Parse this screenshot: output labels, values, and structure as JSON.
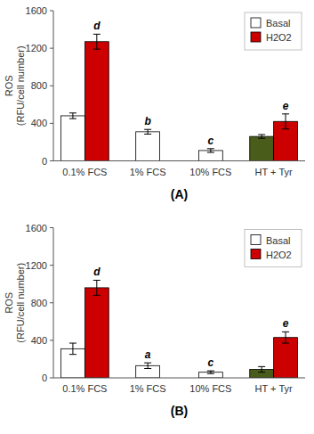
{
  "chart_data": [
    {
      "type": "bar",
      "title": "(A)",
      "categories": [
        "0.1% FCS",
        "1% FCS",
        "10% FCS",
        "HT + Tyr"
      ],
      "series": [
        {
          "name": "Basal",
          "color": "#ffffff",
          "colors": [
            "#ffffff",
            "#ffffff",
            "#ffffff",
            "#4a5c1a"
          ],
          "values": [
            480,
            310,
            110,
            260
          ],
          "errors": [
            30,
            25,
            20,
            20
          ],
          "letters": [
            null,
            "b",
            "c",
            null
          ]
        },
        {
          "name": "H2O2",
          "color": "#cc0000",
          "values": [
            1270,
            null,
            null,
            420
          ],
          "errors": [
            80,
            null,
            null,
            80
          ],
          "letters": [
            "d",
            null,
            null,
            "e"
          ]
        }
      ],
      "y_label": "ROS\n(RFU/cell number)",
      "ylim": [
        0,
        1600
      ],
      "yticks": [
        0,
        400,
        800,
        1200,
        1600
      ],
      "legend": "upper right",
      "grid": false
    },
    {
      "type": "bar",
      "title": "(B)",
      "categories": [
        "0.1% FCS",
        "1% FCS",
        "10% FCS",
        "HT + Tyr"
      ],
      "series": [
        {
          "name": "Basal",
          "color": "#ffffff",
          "colors": [
            "#ffffff",
            "#ffffff",
            "#ffffff",
            "#4a5c1a"
          ],
          "values": [
            310,
            130,
            60,
            90
          ],
          "errors": [
            60,
            30,
            15,
            30
          ],
          "letters": [
            null,
            "a",
            "c",
            null
          ]
        },
        {
          "name": "H2O2",
          "color": "#cc0000",
          "values": [
            960,
            null,
            null,
            430
          ],
          "errors": [
            80,
            null,
            null,
            60
          ],
          "letters": [
            "d",
            null,
            null,
            "e"
          ]
        }
      ],
      "y_label": "ROS\n(RFU/cell number)",
      "ylim": [
        0,
        1600
      ],
      "yticks": [
        0,
        400,
        800,
        1200,
        1600
      ],
      "legend": "upper right",
      "grid": false
    }
  ]
}
